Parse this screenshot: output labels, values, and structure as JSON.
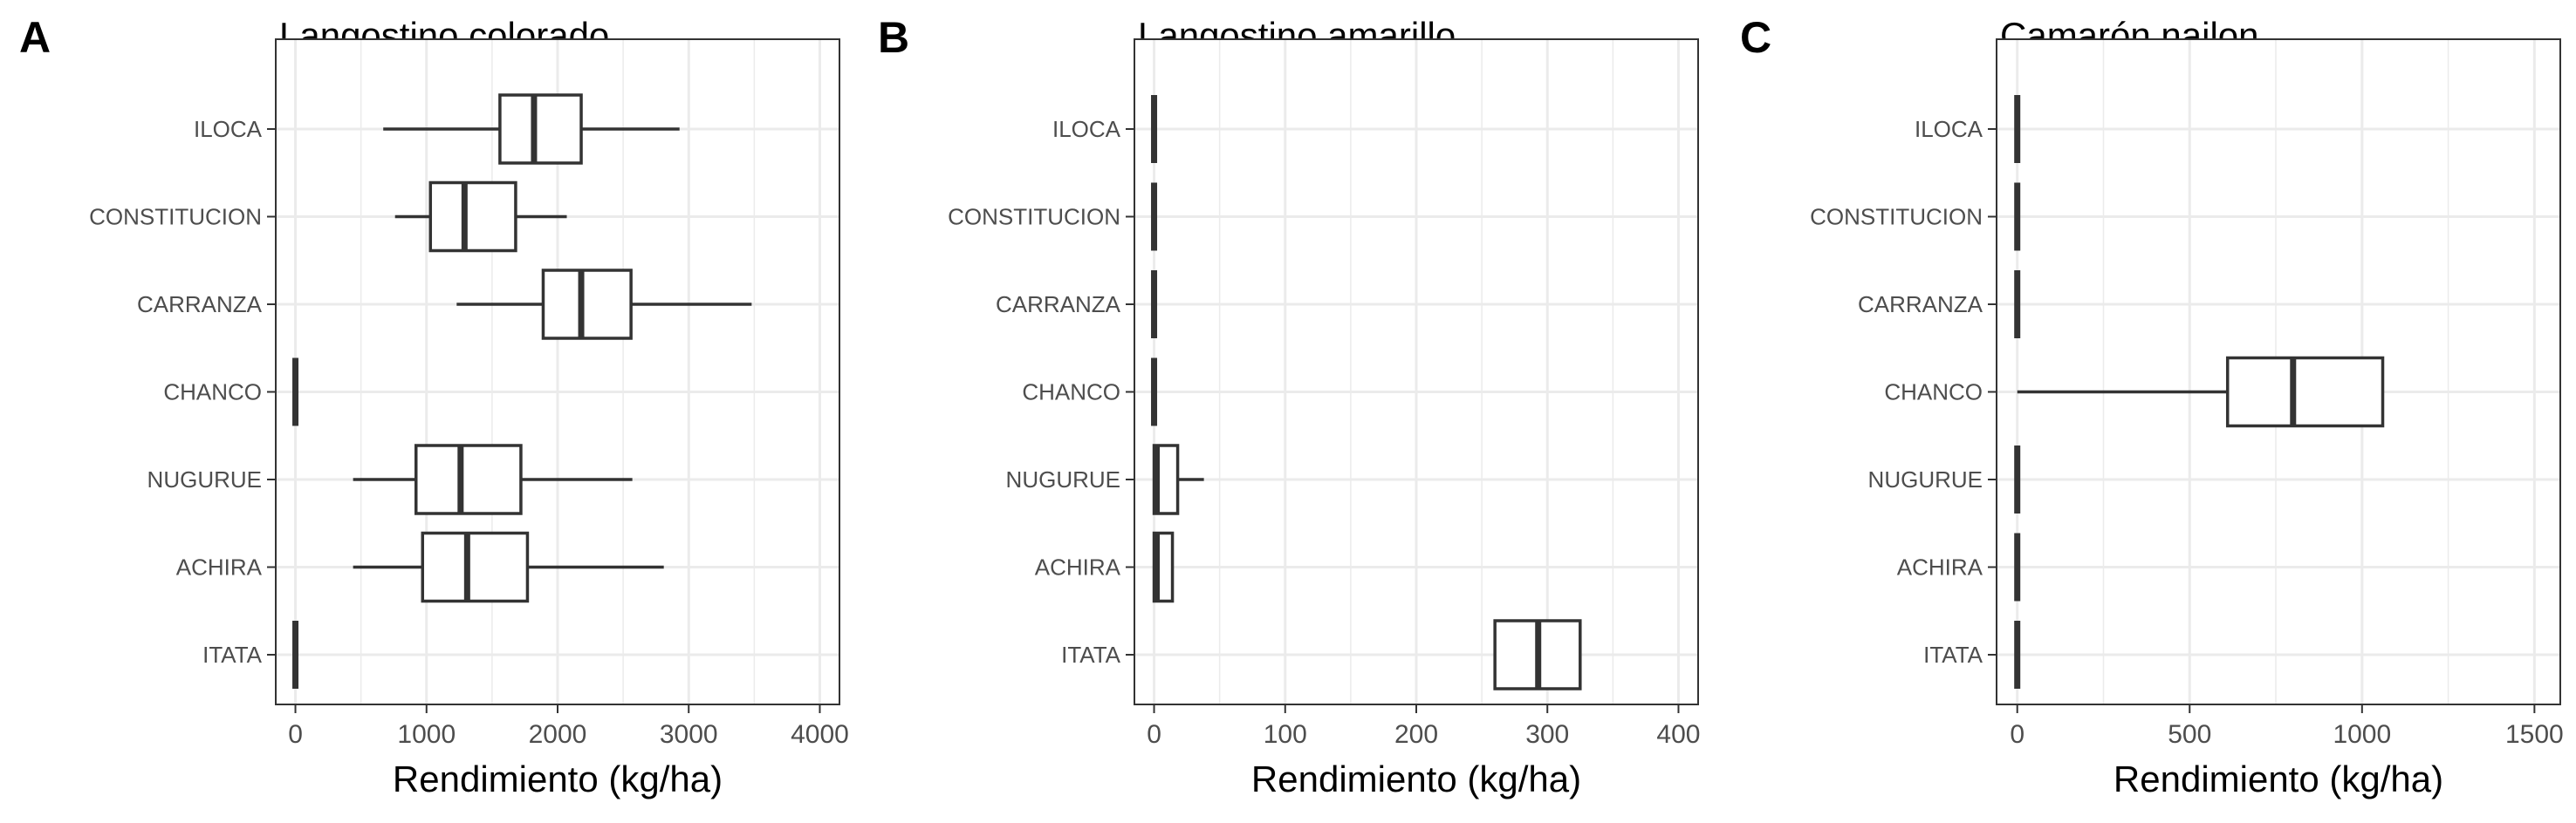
{
  "figure": {
    "colors": {
      "box_stroke": "#333333",
      "grid": "#ebebeb",
      "panel_border": "#333333",
      "tick_text": "#4d4d4d",
      "background": "#ffffff"
    }
  },
  "chart_data": [
    {
      "type": "boxplot",
      "panel_letter": "A",
      "title": "Langostino colorado",
      "xlabel": "Rendimiento (kg/ha)",
      "ylabel": "",
      "xlim": [
        -150,
        4150
      ],
      "x_ticks": [
        0,
        1000,
        2000,
        3000,
        4000
      ],
      "x_tick_labels": [
        "0",
        "1000",
        "2000",
        "3000",
        "4000"
      ],
      "grid": true,
      "categories": [
        "ILOCA",
        "CONSTITUCION",
        "CARRANZA",
        "CHANCO",
        "NUGURUE",
        "ACHIRA",
        "ITATA"
      ],
      "boxes": [
        {
          "min": 670,
          "q1": 1560,
          "median": 1820,
          "q3": 2180,
          "max": 2930
        },
        {
          "min": 760,
          "q1": 1030,
          "median": 1290,
          "q3": 1680,
          "max": 2070
        },
        {
          "min": 1230,
          "q1": 1890,
          "median": 2180,
          "q3": 2560,
          "max": 3480
        },
        {
          "min": 0,
          "q1": 0,
          "median": 0,
          "q3": 0,
          "max": 0
        },
        {
          "min": 440,
          "q1": 920,
          "median": 1260,
          "q3": 1720,
          "max": 2570
        },
        {
          "min": 440,
          "q1": 970,
          "median": 1310,
          "q3": 1770,
          "max": 2810
        },
        {
          "min": 0,
          "q1": 0,
          "median": 0,
          "q3": 0,
          "max": 0
        }
      ]
    },
    {
      "type": "boxplot",
      "panel_letter": "B",
      "title": "Langostino amarillo",
      "xlabel": "Rendimiento (kg/ha)",
      "ylabel": "",
      "xlim": [
        -15,
        415
      ],
      "x_ticks": [
        0,
        100,
        200,
        300,
        400
      ],
      "x_tick_labels": [
        "0",
        "100",
        "200",
        "300",
        "400"
      ],
      "grid": true,
      "categories": [
        "ILOCA",
        "CONSTITUCION",
        "CARRANZA",
        "CHANCO",
        "NUGURUE",
        "ACHIRA",
        "ITATA"
      ],
      "boxes": [
        {
          "min": 0,
          "q1": 0,
          "median": 0,
          "q3": 0,
          "max": 0
        },
        {
          "min": 0,
          "q1": 0,
          "median": 0,
          "q3": 0,
          "max": 0
        },
        {
          "min": 0,
          "q1": 0,
          "median": 0,
          "q3": 0,
          "max": 0
        },
        {
          "min": 0,
          "q1": 0,
          "median": 0,
          "q3": 0,
          "max": 0
        },
        {
          "min": 0,
          "q1": 0,
          "median": 2,
          "q3": 18,
          "max": 38
        },
        {
          "min": 0,
          "q1": 0,
          "median": 2,
          "q3": 14,
          "max": 14
        },
        {
          "min": 260,
          "q1": 260,
          "median": 293,
          "q3": 325,
          "max": 325
        }
      ]
    },
    {
      "type": "boxplot",
      "panel_letter": "C",
      "title": "Camarón nailon",
      "xlabel": "Rendimiento (kg/ha)",
      "ylabel": "",
      "xlim": [
        -60,
        1575
      ],
      "x_ticks": [
        0,
        500,
        1000,
        1500
      ],
      "x_tick_labels": [
        "0",
        "500",
        "1000",
        "1500"
      ],
      "grid": true,
      "categories": [
        "ILOCA",
        "CONSTITUCION",
        "CARRANZA",
        "CHANCO",
        "NUGURUE",
        "ACHIRA",
        "ITATA"
      ],
      "boxes": [
        {
          "min": 0,
          "q1": 0,
          "median": 0,
          "q3": 0,
          "max": 0
        },
        {
          "min": 0,
          "q1": 0,
          "median": 0,
          "q3": 0,
          "max": 0
        },
        {
          "min": 0,
          "q1": 0,
          "median": 0,
          "q3": 0,
          "max": 0
        },
        {
          "min": 0,
          "q1": 610,
          "median": 800,
          "q3": 1060,
          "max": 1060
        },
        {
          "min": 0,
          "q1": 0,
          "median": 0,
          "q3": 0,
          "max": 0
        },
        {
          "min": 0,
          "q1": 0,
          "median": 0,
          "q3": 0,
          "max": 0
        },
        {
          "min": 0,
          "q1": 0,
          "median": 0,
          "q3": 0,
          "max": 0
        }
      ]
    }
  ]
}
